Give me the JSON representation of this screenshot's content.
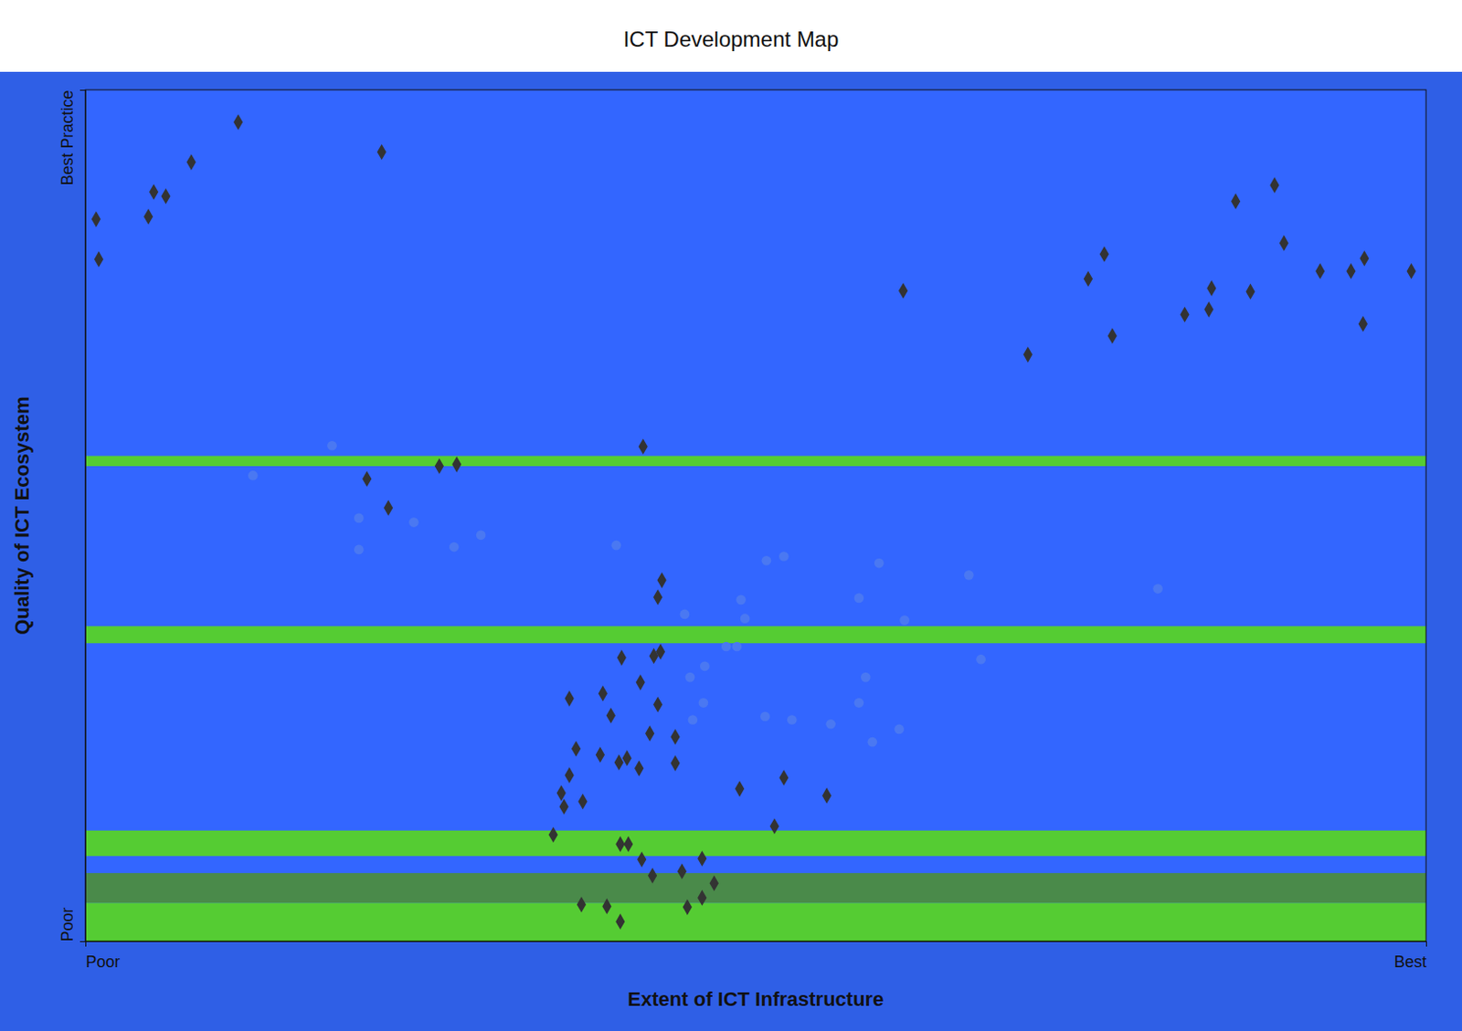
{
  "chart_data": {
    "type": "scatter",
    "title": "ICT Development Map",
    "x_label": "Extent of ICT Infrastructure",
    "y_label": "Quality of ICT Ecosystem",
    "xlim": [
      0,
      100
    ],
    "ylim": [
      0,
      100
    ],
    "xticks": [
      {
        "value": 0,
        "label": "Poor"
      },
      {
        "value": 100,
        "label": "Best"
      }
    ],
    "yticks": [
      {
        "value": 0,
        "label": "Poor"
      },
      {
        "value": 100,
        "label": "Best Practice"
      }
    ],
    "grid": false,
    "series": [
      {
        "color": "#333333",
        "marker": "diamond",
        "x": [
          11.4,
          7.9,
          22.1,
          5.1,
          6.0,
          0.8,
          4.7,
          1.0,
          88.7,
          85.8,
          76.0,
          89.4,
          74.8,
          61.0,
          84.0,
          86.9,
          92.1,
          94.4,
          95.4,
          98.9,
          82.0,
          83.8,
          76.6,
          95.3,
          70.3,
          41.6,
          26.4,
          27.7,
          21.0,
          22.6,
          43.0,
          42.7,
          42.9,
          42.4,
          40.0,
          36.1,
          38.6,
          41.4,
          42.7,
          39.2,
          42.1,
          44.0,
          36.6,
          38.4,
          40.4,
          39.8,
          41.3,
          44.0,
          36.1,
          48.8,
          52.1,
          35.5,
          37.1,
          35.7,
          55.3,
          51.4,
          34.9,
          39.9,
          40.5,
          41.5,
          46.0,
          42.3,
          44.5,
          46.9,
          46.0,
          37.0,
          38.9,
          44.9,
          39.9
        ],
        "values": [
          96.2,
          91.5,
          92.7,
          88.0,
          87.5,
          84.8,
          85.1,
          80.1,
          88.8,
          86.9,
          80.7,
          82.0,
          77.8,
          76.4,
          76.7,
          76.3,
          78.7,
          78.7,
          80.2,
          78.7,
          73.6,
          74.2,
          71.1,
          72.5,
          68.9,
          58.1,
          55.8,
          56.0,
          54.3,
          50.9,
          42.4,
          40.4,
          34.0,
          33.5,
          33.3,
          28.5,
          29.1,
          30.4,
          27.8,
          26.5,
          24.4,
          24.0,
          22.6,
          21.9,
          21.5,
          21.0,
          20.3,
          20.9,
          19.5,
          17.9,
          19.2,
          17.4,
          16.4,
          15.8,
          17.1,
          13.5,
          12.5,
          11.4,
          11.4,
          9.6,
          9.7,
          7.7,
          8.2,
          6.8,
          5.1,
          4.3,
          4.1,
          4.0,
          2.3
        ]
      },
      {
        "color": "#4a78f2",
        "marker": "circle",
        "x": [
          50.8,
          52.1,
          59.2,
          65.9,
          80.0,
          61.1,
          57.7,
          48.9,
          49.2,
          44.7,
          45.1,
          46.1,
          47.8,
          48.6,
          46.2,
          58.2,
          57.7,
          45.3,
          50.7,
          52.7,
          55.6,
          58.7,
          60.7,
          66.8,
          39.6,
          29.5,
          27.5,
          20.4,
          24.5,
          20.4,
          12.5,
          18.4
        ],
        "values": [
          44.7,
          45.2,
          44.4,
          43.0,
          41.4,
          37.7,
          40.3,
          40.1,
          37.9,
          38.4,
          31.0,
          28.0,
          34.6,
          34.6,
          32.3,
          31.0,
          28.0,
          26.0,
          26.4,
          26.0,
          25.5,
          23.4,
          24.9,
          33.1,
          46.5,
          47.7,
          46.3,
          46.0,
          49.2,
          49.7,
          54.7,
          58.2
        ]
      }
    ]
  }
}
